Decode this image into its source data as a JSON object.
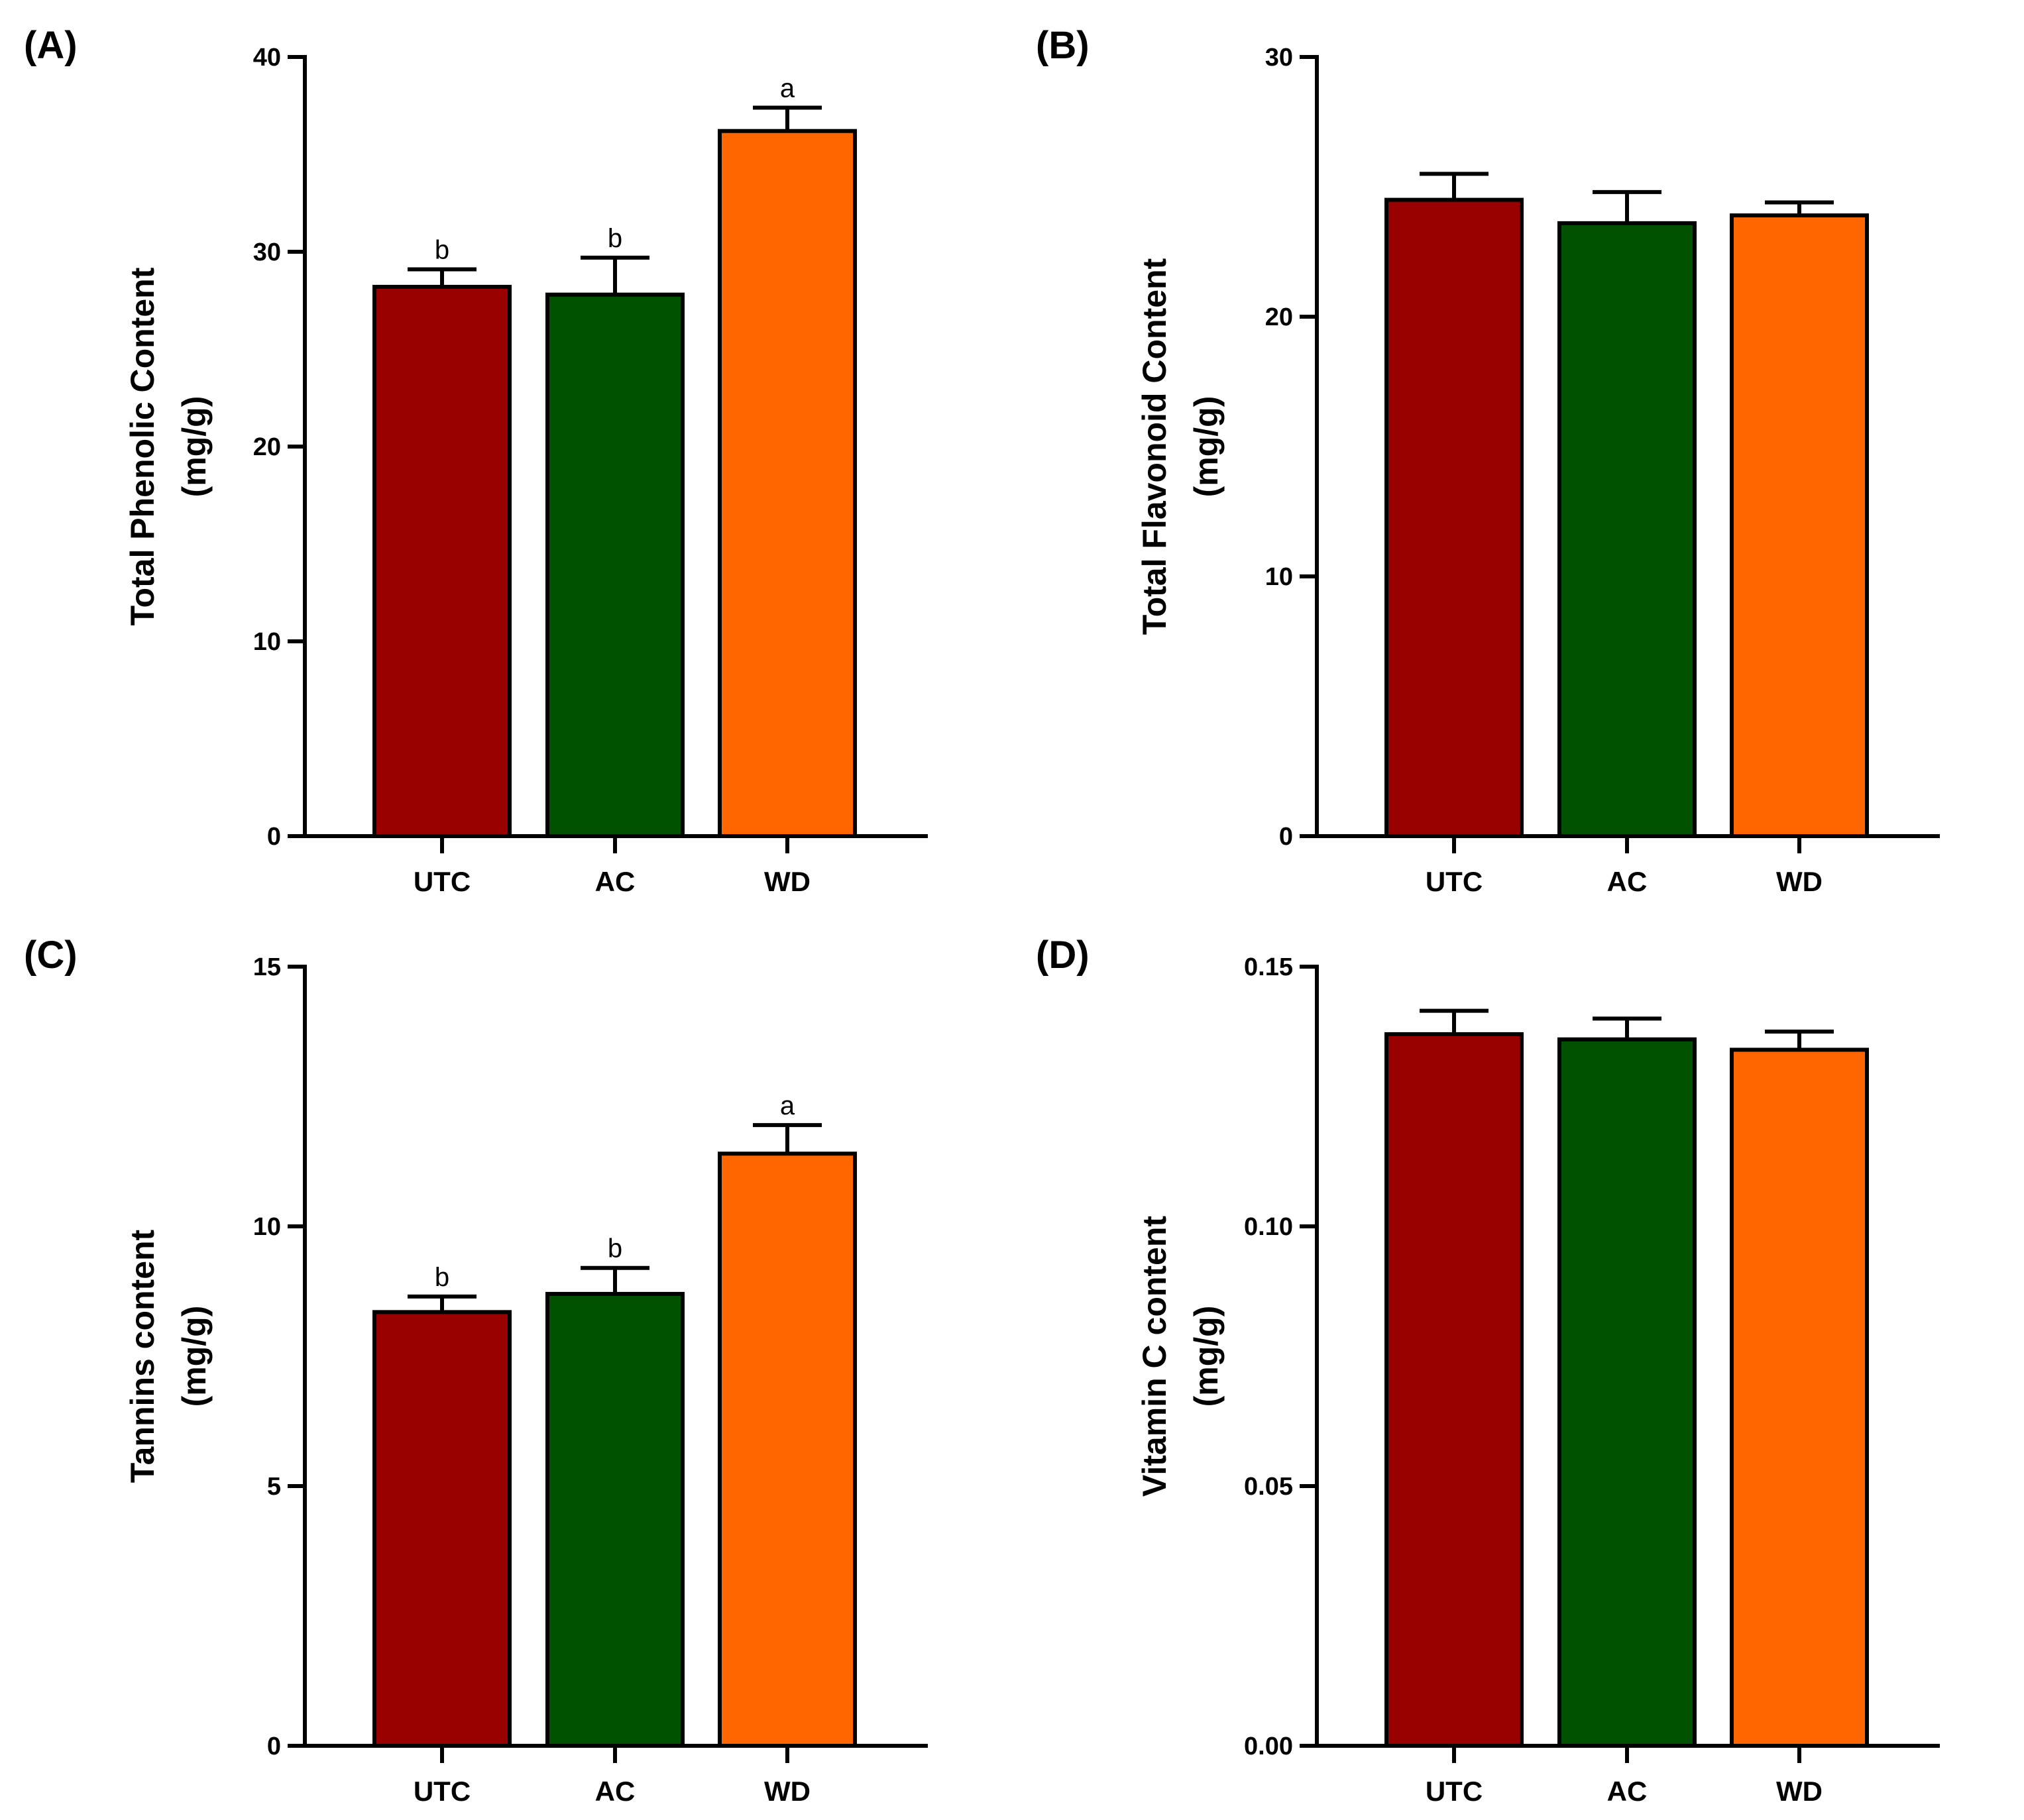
{
  "chart_data": [
    {
      "panel_label": "(A)",
      "type": "bar",
      "categories": [
        "UTC",
        "AC",
        "WD"
      ],
      "values": [
        28.2,
        27.8,
        36.2
      ],
      "error": [
        0.9,
        1.9,
        1.2
      ],
      "significance": [
        "b",
        "b",
        "a"
      ],
      "ylabel_lines": [
        "Total Phenolic Content",
        "(mg/g)"
      ],
      "ylim": [
        0,
        40
      ],
      "yticks": [
        0,
        10,
        20,
        30,
        40
      ],
      "ytick_labels": [
        "0",
        "10",
        "20",
        "30",
        "40"
      ],
      "grid": false
    },
    {
      "panel_label": "(B)",
      "type": "bar",
      "categories": [
        "UTC",
        "AC",
        "WD"
      ],
      "values": [
        24.5,
        23.6,
        23.9
      ],
      "error": [
        1.0,
        1.2,
        0.5
      ],
      "significance": [
        "",
        "",
        ""
      ],
      "ylabel_lines": [
        "Total Flavonoid Content",
        "(mg/g)"
      ],
      "ylim": [
        0,
        30
      ],
      "yticks": [
        0,
        10,
        20,
        30
      ],
      "ytick_labels": [
        "0",
        "10",
        "20",
        "30"
      ],
      "grid": false
    },
    {
      "panel_label": "(C)",
      "type": "bar",
      "categories": [
        "UTC",
        "AC",
        "WD"
      ],
      "values": [
        8.35,
        8.7,
        11.4
      ],
      "error": [
        0.3,
        0.5,
        0.55
      ],
      "significance": [
        "b",
        "b",
        "a"
      ],
      "ylabel_lines": [
        "Tannins content",
        "(mg/g)"
      ],
      "ylim": [
        0,
        15
      ],
      "yticks": [
        0,
        5,
        10,
        15
      ],
      "ytick_labels": [
        "0",
        "5",
        "10",
        "15"
      ],
      "grid": false
    },
    {
      "panel_label": "(D)",
      "type": "bar",
      "categories": [
        "UTC",
        "AC",
        "WD"
      ],
      "values": [
        0.137,
        0.136,
        0.134
      ],
      "error": [
        0.0045,
        0.004,
        0.0035
      ],
      "significance": [
        "",
        "",
        ""
      ],
      "ylabel_lines": [
        "Vitamin C content",
        "(mg/g)"
      ],
      "ylim": [
        0,
        0.15
      ],
      "yticks": [
        0,
        0.05,
        0.1,
        0.15
      ],
      "ytick_labels": [
        "0.00",
        "0.05",
        "0.10",
        "0.15"
      ],
      "grid": false
    }
  ],
  "colors": {
    "UTC": "#990000",
    "AC": "#005200",
    "WD": "#ff6600",
    "axis": "#000000"
  }
}
